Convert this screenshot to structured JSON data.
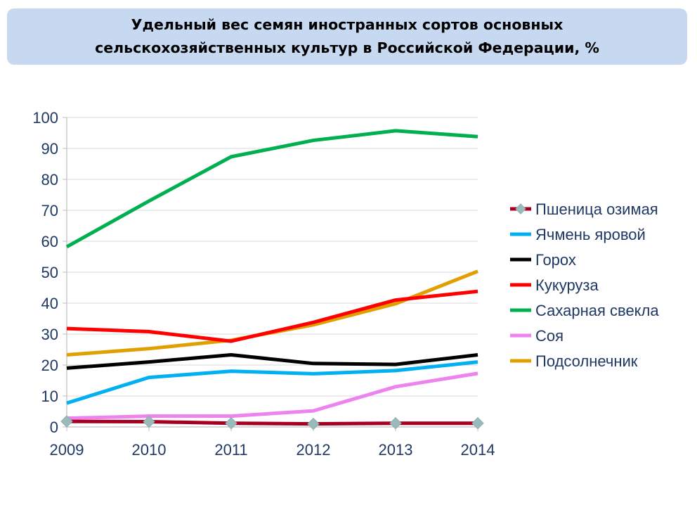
{
  "title": "Удельный вес семян иностранных сортов основных сельскохозяйственных культур в Российской Федерации, %",
  "chart_data": {
    "type": "line",
    "title": "Удельный вес семян иностранных сортов основных сельскохозяйственных культур в Российской Федерации, %",
    "xlabel": "",
    "ylabel": "",
    "x": [
      "2009",
      "2010",
      "2011",
      "2012",
      "2013",
      "2014"
    ],
    "ylim": [
      0,
      100
    ],
    "yticks": [
      0,
      10,
      20,
      30,
      40,
      50,
      60,
      70,
      80,
      90,
      100
    ],
    "grid": true,
    "legend_position": "right",
    "series": [
      {
        "name": "Пшеница озимая",
        "color": "#a50021",
        "marker": "diamond",
        "marker_color": "#9bbbbb",
        "values": [
          1.8,
          1.7,
          1.2,
          1.0,
          1.2,
          1.2
        ]
      },
      {
        "name": "Ячмень яровой",
        "color": "#00b0f0",
        "values": [
          7.7,
          16.0,
          18.0,
          17.2,
          18.2,
          21.0
        ]
      },
      {
        "name": "Горох",
        "color": "#000000",
        "values": [
          19.0,
          21.0,
          23.3,
          20.5,
          20.2,
          23.3
        ]
      },
      {
        "name": "Кукуруза",
        "color": "#ff0000",
        "values": [
          31.8,
          30.8,
          27.7,
          33.8,
          41.0,
          43.8
        ]
      },
      {
        "name": "Сахарная свекла",
        "color": "#00b050",
        "values": [
          58.2,
          73.0,
          87.3,
          92.6,
          95.7,
          93.8
        ]
      },
      {
        "name": "Соя",
        "color": "#ee82ee",
        "values": [
          2.8,
          3.5,
          3.5,
          5.2,
          13.0,
          17.3
        ]
      },
      {
        "name": "Подсолнечник",
        "color": "#e0a000",
        "values": [
          23.3,
          25.3,
          28.0,
          33.0,
          39.8,
          50.3
        ]
      }
    ]
  }
}
